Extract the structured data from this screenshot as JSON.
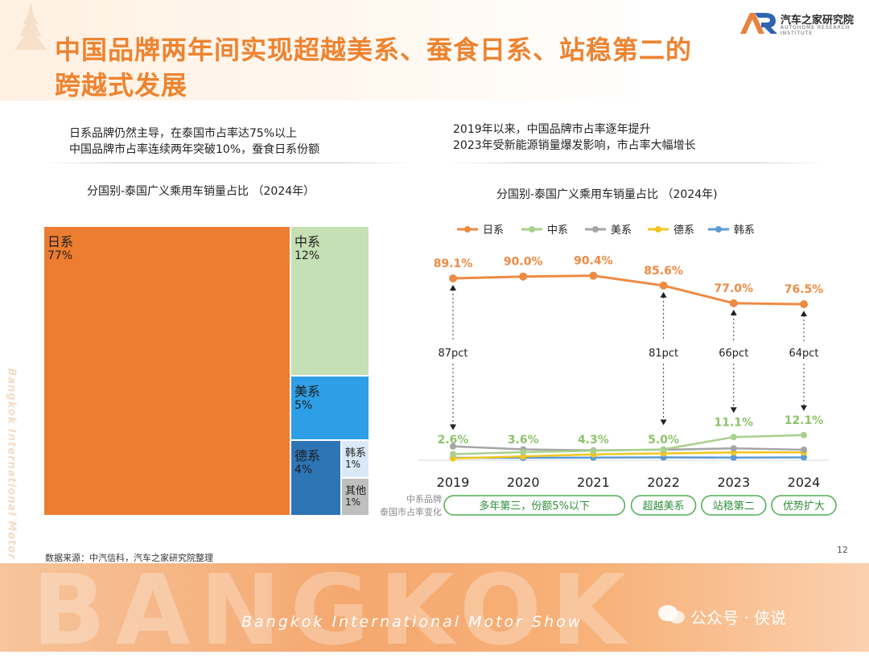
{
  "page": {
    "title_line1": "中国品牌两年间实现超越美系、蚕食日系、站稳第二的",
    "title_line2": "跨越式发展",
    "brand_name": "汽车之家研究院",
    "brand_sub": "AUTOHOME RESEARCH INSTITUTE",
    "side_text": "Bangkok International Motor Show",
    "source": "数据来源：中汽信科，汽车之家研究院整理",
    "page_number": "12",
    "bottom_big": "BANGKOK",
    "bottom_text": "Bangkok International Motor Show",
    "watermark": "公众号 · 侠说"
  },
  "left_note": {
    "line1": "日系品牌仍然主导，在泰国市占率达75%以上",
    "line2": "中国品牌市占率连续两年突破10%，蚕食日系份额"
  },
  "right_note": {
    "line1": "2019年以来，中国品牌市占率逐年提升",
    "line2": "2023年受新能源销量爆发影响，市占率大幅增长"
  },
  "colors": {
    "title": "#ee8330",
    "jp": "#ed7d31",
    "cn": "#c5e0b4",
    "us": "#2e9fe6",
    "de": "#2e75b6",
    "kr": "#dae8f7",
    "other": "#bfbfbf",
    "line_jp": "#ee8a44",
    "line_cn": "#a9d18e",
    "line_us": "#a5a5a5",
    "line_de": "#f2c61f",
    "line_kr": "#5b9bd5",
    "green_box": "#4caf50"
  },
  "chart_data": [
    {
      "type": "treemap",
      "title": "分国别-泰国广义乘用车销量占比 （2024年）",
      "items": [
        {
          "name": "日系",
          "label": "77%",
          "value": 77
        },
        {
          "name": "中系",
          "label": "12%",
          "value": 12
        },
        {
          "name": "美系",
          "label": "5%",
          "value": 5
        },
        {
          "name": "德系",
          "label": "4%",
          "value": 4
        },
        {
          "name": "韩系",
          "label": "1%",
          "value": 1
        },
        {
          "name": "其他",
          "label": "1%",
          "value": 1
        }
      ]
    },
    {
      "type": "line",
      "title": "分国别-泰国广义乘用车销量占比 （2024年)",
      "x": [
        "2019",
        "2020",
        "2021",
        "2022",
        "2023",
        "2024"
      ],
      "ylim": [
        0,
        100
      ],
      "series": [
        {
          "name": "日系",
          "values": [
            89.1,
            90.0,
            90.4,
            85.6,
            77.0,
            76.5
          ],
          "labels": [
            "89.1%",
            "90.0%",
            "90.4%",
            "85.6%",
            "77.0%",
            "76.5%"
          ]
        },
        {
          "name": "中系",
          "values": [
            2.6,
            3.6,
            4.3,
            5.0,
            11.1,
            12.1
          ],
          "labels": [
            "2.6%",
            "3.6%",
            "4.3%",
            "5.0%",
            "11.1%",
            "12.1%"
          ]
        },
        {
          "name": "美系",
          "values": [
            6.5,
            5.0,
            4.5,
            4.8,
            5.5,
            4.8
          ]
        },
        {
          "name": "德系",
          "values": [
            0.5,
            1.5,
            2.5,
            3.0,
            3.5,
            3.5
          ]
        },
        {
          "name": "韩系",
          "values": [
            0.8,
            0.8,
            0.9,
            1.0,
            0.9,
            1.0
          ]
        }
      ],
      "gaps": [
        {
          "x": "2019",
          "label": "87pct"
        },
        {
          "x": "2022",
          "label": "81pct"
        },
        {
          "x": "2023",
          "label": "66pct"
        },
        {
          "x": "2024",
          "label": "64pct"
        }
      ],
      "row_label_line1": "中系品牌",
      "row_label_line2": "泰国市占率变化",
      "phases": [
        {
          "label": "多年第三，份额5%以下",
          "from": "2019",
          "to": "2021"
        },
        {
          "label": "超越美系",
          "from": "2022",
          "to": "2022"
        },
        {
          "label": "站稳第二",
          "from": "2023",
          "to": "2023"
        },
        {
          "label": "优势扩大",
          "from": "2024",
          "to": "2024"
        }
      ]
    }
  ]
}
